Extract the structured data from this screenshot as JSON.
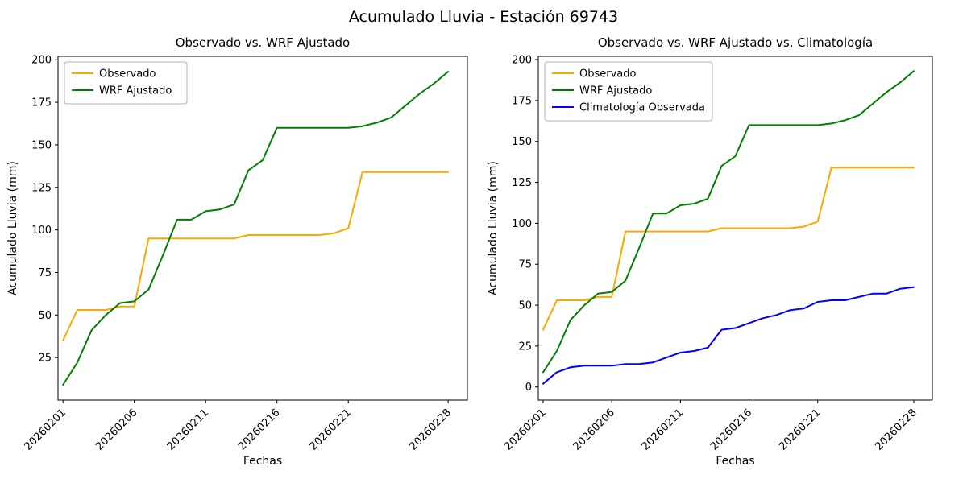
{
  "figure": {
    "title": "Acumulado Lluvia - Estación 69743",
    "background": "#ffffff"
  },
  "chart_data": [
    {
      "type": "line",
      "title": "Observado vs. WRF Ajustado",
      "xlabel": "Fechas",
      "ylabel": "Acumulado Lluvia (mm)",
      "categories": [
        "20260201",
        "20260202",
        "20260203",
        "20260204",
        "20260205",
        "20260206",
        "20260207",
        "20260208",
        "20260209",
        "20260210",
        "20260211",
        "20260212",
        "20260213",
        "20260214",
        "20260215",
        "20260216",
        "20260217",
        "20260218",
        "20260219",
        "20260220",
        "20260221",
        "20260222",
        "20260223",
        "20260224",
        "20260225",
        "20260226",
        "20260227",
        "20260228"
      ],
      "xtick_labels": [
        "20260201",
        "20260206",
        "20260211",
        "20260216",
        "20260221",
        "20260228"
      ],
      "xtick_indices": [
        0,
        5,
        10,
        15,
        20,
        27
      ],
      "yticks": [
        25,
        50,
        75,
        100,
        125,
        150,
        175,
        200
      ],
      "ylim": [
        0,
        202
      ],
      "legend_position": "upper-left",
      "grid": false,
      "series": [
        {
          "name": "Observado",
          "color": "#FFA500",
          "values": [
            35,
            53,
            53,
            53,
            55,
            55,
            95,
            95,
            95,
            95,
            95,
            95,
            95,
            97,
            97,
            97,
            97,
            97,
            97,
            98,
            101,
            134,
            134,
            134,
            134,
            134,
            134,
            134
          ]
        },
        {
          "name": "WRF Ajustado",
          "color": "#008000",
          "values": [
            9,
            22,
            41,
            50,
            57,
            58,
            65,
            85,
            106,
            106,
            111,
            112,
            115,
            135,
            141,
            160,
            160,
            160,
            160,
            160,
            160,
            161,
            163,
            166,
            173,
            180,
            186,
            193
          ]
        }
      ]
    },
    {
      "type": "line",
      "title": "Observado vs. WRF Ajustado vs. Climatología",
      "xlabel": "Fechas",
      "ylabel": "Acumulado Lluvia (mm)",
      "categories": [
        "20260201",
        "20260202",
        "20260203",
        "20260204",
        "20260205",
        "20260206",
        "20260207",
        "20260208",
        "20260209",
        "20260210",
        "20260211",
        "20260212",
        "20260213",
        "20260214",
        "20260215",
        "20260216",
        "20260217",
        "20260218",
        "20260219",
        "20260220",
        "20260221",
        "20260222",
        "20260223",
        "20260224",
        "20260225",
        "20260226",
        "20260227",
        "20260228"
      ],
      "xtick_labels": [
        "20260201",
        "20260206",
        "20260211",
        "20260216",
        "20260221",
        "20260228"
      ],
      "xtick_indices": [
        0,
        5,
        10,
        15,
        20,
        27
      ],
      "yticks": [
        0,
        25,
        50,
        75,
        100,
        125,
        150,
        175,
        200
      ],
      "ylim": [
        -8,
        202
      ],
      "legend_position": "upper-left",
      "grid": false,
      "series": [
        {
          "name": "Observado",
          "color": "#FFA500",
          "values": [
            35,
            53,
            53,
            53,
            55,
            55,
            95,
            95,
            95,
            95,
            95,
            95,
            95,
            97,
            97,
            97,
            97,
            97,
            97,
            98,
            101,
            134,
            134,
            134,
            134,
            134,
            134,
            134
          ]
        },
        {
          "name": "WRF Ajustado",
          "color": "#008000",
          "values": [
            9,
            22,
            41,
            50,
            57,
            58,
            65,
            85,
            106,
            106,
            111,
            112,
            115,
            135,
            141,
            160,
            160,
            160,
            160,
            160,
            160,
            161,
            163,
            166,
            173,
            180,
            186,
            193
          ]
        },
        {
          "name": "Climatología Observada",
          "color": "#0000FF",
          "values": [
            2,
            9,
            12,
            13,
            13,
            13,
            14,
            14,
            15,
            18,
            21,
            22,
            24,
            35,
            36,
            39,
            42,
            44,
            47,
            48,
            52,
            53,
            53,
            55,
            57,
            57,
            60,
            61
          ]
        }
      ]
    }
  ]
}
